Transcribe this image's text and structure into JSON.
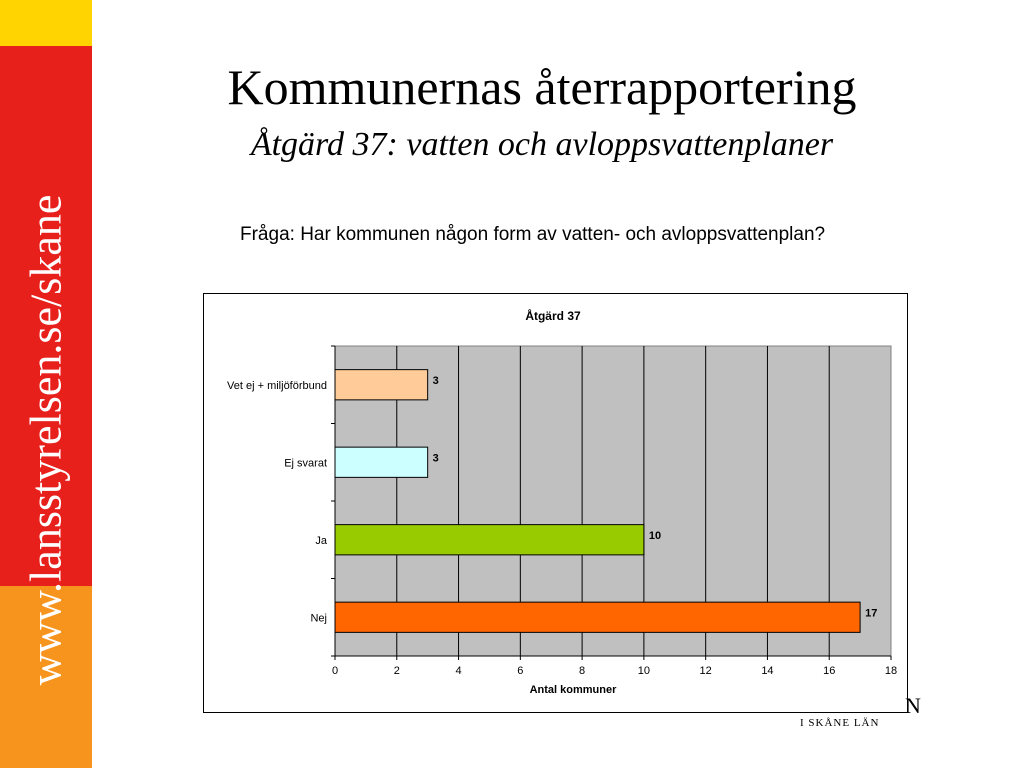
{
  "sidebar": {
    "url": "www.lansstyrelsen.se/skane",
    "colors": {
      "top": "#ffd400",
      "middle": "#e8201c",
      "bottom": "#f7941d"
    }
  },
  "header": {
    "title": "Kommunernas återrapportering",
    "subtitle": "Åtgärd 37: vatten och avloppsvattenplaner"
  },
  "question": "Fråga: Har kommunen någon form av vatten- och avloppsvattenplan?",
  "logo": {
    "fragment": "N",
    "sub": "I SKÅNE LÄN"
  },
  "chart_data": {
    "type": "bar",
    "orientation": "horizontal",
    "title": "Åtgärd 37",
    "xlabel": "Antal kommuner",
    "ylabel": "",
    "categories": [
      "Vet ej + miljöförbund",
      "Ej svarat",
      "Ja",
      "Nej"
    ],
    "values": [
      3,
      3,
      10,
      17
    ],
    "bar_colors": [
      "#ffcc99",
      "#ccffff",
      "#99cc00",
      "#ff6600"
    ],
    "xlim": [
      0,
      18
    ],
    "xticks": [
      0,
      2,
      4,
      6,
      8,
      10,
      12,
      14,
      16,
      18
    ],
    "grid": true,
    "legend": "none",
    "plot_background": "#c0c0c0"
  }
}
